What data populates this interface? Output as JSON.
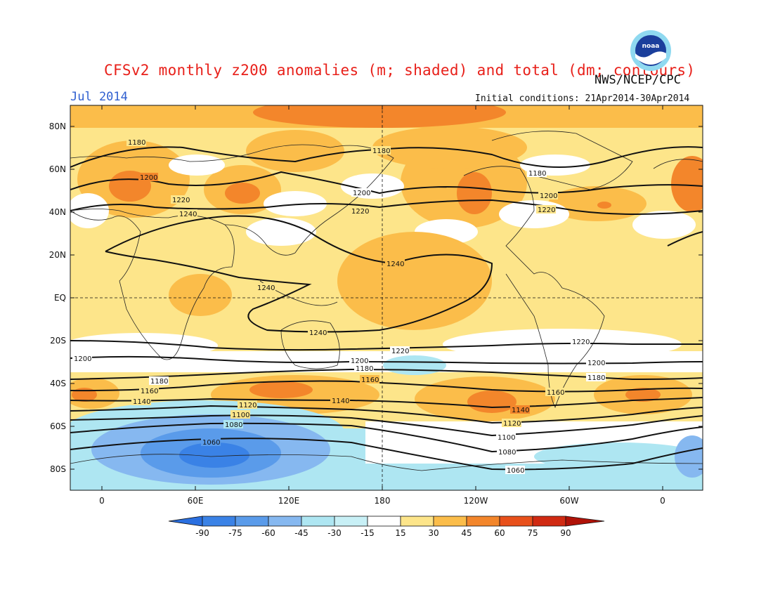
{
  "title": "CFSv2 monthly z200 anomalies (m; shaded) and total (dm; contours)",
  "agency": "NWS/NCEP/CPC",
  "month": "Jul 2014",
  "initial_conditions": "Initial conditions: 21Apr2014-30Apr2014",
  "logo_text": "noaa",
  "lat_labels": [
    "80N",
    "60N",
    "40N",
    "20N",
    "EQ",
    "20S",
    "40S",
    "60S",
    "80S"
  ],
  "lon_labels": [
    "0",
    "60E",
    "120E",
    "180",
    "120W",
    "60W",
    "0"
  ],
  "contour_labels": [
    "1180",
    "1200",
    "1220",
    "1240",
    "1160",
    "1140",
    "1120",
    "1100",
    "1080",
    "1060"
  ],
  "colorbar": {
    "ticks": [
      "-90",
      "-75",
      "-60",
      "-45",
      "-30",
      "-15",
      "15",
      "30",
      "45",
      "60",
      "75",
      "90"
    ],
    "colors": [
      "#2a6fe0",
      "#3a82e6",
      "#5a9bea",
      "#86b8f0",
      "#aee6f2",
      "#ffffff",
      "#fde58a",
      "#fbbd4a",
      "#f3862b",
      "#e8501b",
      "#c41e10"
    ]
  }
}
